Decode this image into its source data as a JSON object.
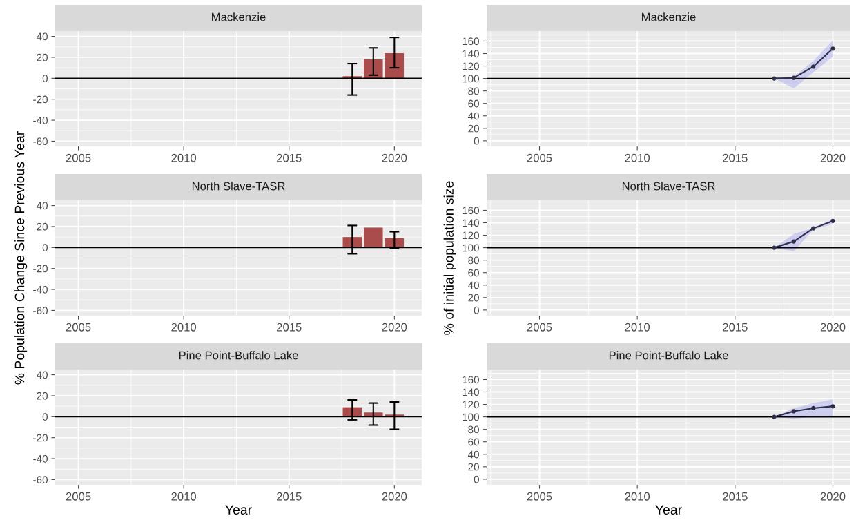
{
  "chart_data": [
    {
      "type": "bar",
      "title": "Mackenzie",
      "x": [
        2018,
        2019,
        2020
      ],
      "series": [
        {
          "color": "#a33b3b",
          "values": [
            2,
            18,
            24
          ],
          "errors": [
            [
              -16,
              14
            ],
            [
              3,
              29
            ],
            [
              10,
              39
            ]
          ]
        }
      ],
      "xlim": [
        2003.9,
        2021.3
      ],
      "xticks": [
        2005,
        2010,
        2015,
        2020
      ],
      "ylim": [
        -65,
        45
      ],
      "yticks": [
        -60,
        -40,
        -20,
        0,
        20,
        40
      ],
      "ref_lines": [
        {
          "axis": "y",
          "value": 0
        }
      ],
      "grid": true
    },
    {
      "type": "line",
      "title": "Mackenzie",
      "x": [
        2017,
        2018,
        2019,
        2020
      ],
      "series": [
        {
          "color": "#2e2e4a",
          "values": [
            100,
            101,
            119,
            148
          ],
          "lower": [
            100,
            84,
            110,
            135
          ],
          "upper": [
            100,
            103,
            128,
            161
          ]
        }
      ],
      "xlim": [
        2002.3,
        2020.9
      ],
      "xticks": [
        2005,
        2010,
        2015,
        2020
      ],
      "ylim": [
        -9,
        176
      ],
      "yticks": [
        0,
        20,
        40,
        60,
        80,
        100,
        120,
        140,
        160
      ],
      "ref_lines": [
        {
          "axis": "y",
          "value": 100
        }
      ],
      "grid": true,
      "marker": "circle"
    },
    {
      "type": "bar",
      "title": "North Slave-TASR",
      "ylabel": "% Population Change Since Previous Year",
      "x": [
        2018,
        2019,
        2020
      ],
      "series": [
        {
          "color": "#a33b3b",
          "values": [
            10,
            19,
            9
          ],
          "errors": [
            [
              -6,
              21
            ],
            null,
            [
              -1,
              15
            ]
          ]
        }
      ],
      "xlim": [
        2003.9,
        2021.3
      ],
      "xticks": [
        2005,
        2010,
        2015,
        2020
      ],
      "ylim": [
        -65,
        45
      ],
      "yticks": [
        -60,
        -40,
        -20,
        0,
        20,
        40
      ],
      "ref_lines": [
        {
          "axis": "y",
          "value": 0
        }
      ],
      "grid": true
    },
    {
      "type": "line",
      "title": "North Slave-TASR",
      "ylabel": "% of initial population size",
      "x": [
        2017,
        2018,
        2019,
        2020
      ],
      "series": [
        {
          "color": "#2e2e4a",
          "values": [
            100,
            110,
            131,
            143
          ],
          "lower": [
            100,
            94,
            129,
            138
          ],
          "upper": [
            100,
            122,
            132,
            146
          ]
        }
      ],
      "xlim": [
        2002.3,
        2020.9
      ],
      "xticks": [
        2005,
        2010,
        2015,
        2020
      ],
      "ylim": [
        -9,
        176
      ],
      "yticks": [
        0,
        20,
        40,
        60,
        80,
        100,
        120,
        140,
        160
      ],
      "ref_lines": [
        {
          "axis": "y",
          "value": 100
        }
      ],
      "grid": true,
      "marker": "circle"
    },
    {
      "type": "bar",
      "title": "Pine Point-Buffalo Lake",
      "xlabel": "Year",
      "x": [
        2018,
        2019,
        2020
      ],
      "series": [
        {
          "color": "#a33b3b",
          "values": [
            9,
            4,
            2
          ],
          "errors": [
            [
              -3,
              16
            ],
            [
              -8,
              13
            ],
            [
              -12,
              14
            ]
          ]
        }
      ],
      "xlim": [
        2003.9,
        2021.3
      ],
      "xticks": [
        2005,
        2010,
        2015,
        2020
      ],
      "ylim": [
        -65,
        45
      ],
      "yticks": [
        -60,
        -40,
        -20,
        0,
        20,
        40
      ],
      "ref_lines": [
        {
          "axis": "y",
          "value": 0
        }
      ],
      "grid": true
    },
    {
      "type": "line",
      "title": "Pine Point-Buffalo Lake",
      "xlabel": "Year",
      "x": [
        2017,
        2018,
        2019,
        2020
      ],
      "series": [
        {
          "color": "#2e2e4a",
          "values": [
            100,
            109,
            114,
            117
          ],
          "lower": [
            100,
            97,
            100,
            101
          ],
          "upper": [
            100,
            114,
            122,
            128
          ]
        }
      ],
      "xlim": [
        2002.3,
        2020.9
      ],
      "xticks": [
        2005,
        2010,
        2015,
        2020
      ],
      "ylim": [
        -9,
        176
      ],
      "yticks": [
        0,
        20,
        40,
        60,
        80,
        100,
        120,
        140,
        160
      ],
      "ref_lines": [
        {
          "axis": "y",
          "value": 100
        }
      ],
      "grid": true,
      "marker": "circle"
    }
  ]
}
